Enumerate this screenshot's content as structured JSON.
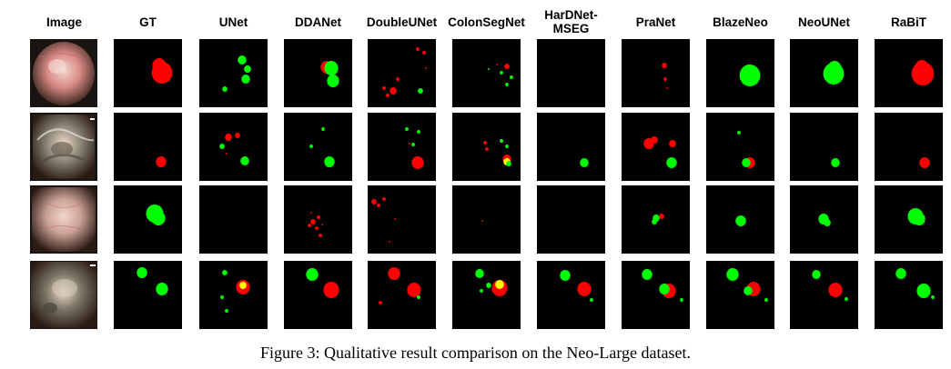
{
  "figure": {
    "column_headers": [
      "Image",
      "GT",
      "UNet",
      "DDANet",
      "DoubleUNet",
      "ColonSegNet",
      "HarDNet-\nMSEG",
      "PraNet",
      "BlazeNeo",
      "NeoUNet",
      "RaBiT"
    ],
    "caption": "Figure 3: Qualitative result comparison on the Neo-Large dataset.",
    "rows": 4,
    "colors": {
      "neoplastic": "#ff0000",
      "non_neoplastic": "#00ff00",
      "overlap": "#ffff00",
      "mask_background": "#000000",
      "photo_tones": [
        "#d88a84",
        "#8c8878",
        "#cba195",
        "#7a7666"
      ]
    }
  }
}
